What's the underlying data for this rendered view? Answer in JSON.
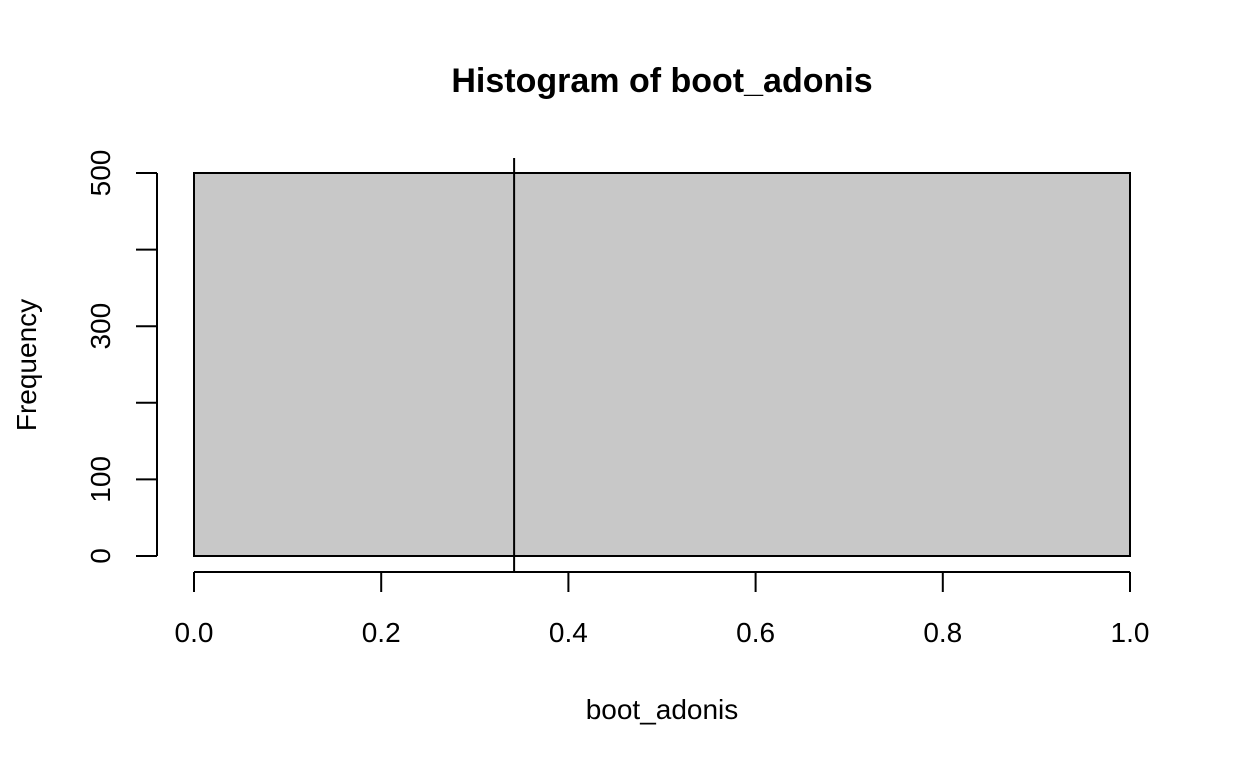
{
  "chart_data": {
    "type": "bar",
    "title": "Histogram of boot_adonis",
    "xlabel": "boot_adonis",
    "ylabel": "Frequency",
    "bins": [
      {
        "x0": 0.0,
        "x1": 1.0,
        "count": 500
      }
    ],
    "xlim": [
      0.0,
      1.0
    ],
    "ylim": [
      0,
      500
    ],
    "x_ticks": [
      {
        "value": 0.0,
        "label": "0.0"
      },
      {
        "value": 0.2,
        "label": "0.2"
      },
      {
        "value": 0.4,
        "label": "0.4"
      },
      {
        "value": 0.6,
        "label": "0.6"
      },
      {
        "value": 0.8,
        "label": "0.8"
      },
      {
        "value": 1.0,
        "label": "1.0"
      }
    ],
    "y_ticks": [
      {
        "value": 0,
        "label": "0"
      },
      {
        "value": 100,
        "label": "100"
      },
      {
        "value": 200,
        "label": ""
      },
      {
        "value": 300,
        "label": "300"
      },
      {
        "value": 400,
        "label": ""
      },
      {
        "value": 500,
        "label": "500"
      }
    ],
    "reference_line": {
      "orientation": "vertical",
      "x": 0.342
    },
    "grid": false,
    "colors": {
      "bar_fill": "#c8c8c8",
      "stroke": "#000000",
      "background": "#ffffff"
    }
  }
}
